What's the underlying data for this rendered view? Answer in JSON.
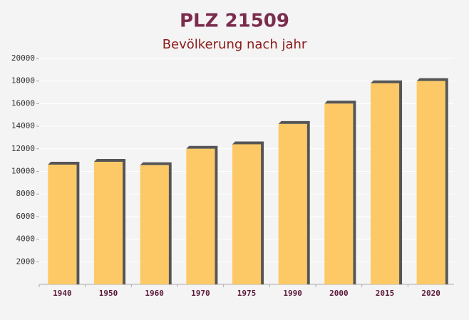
{
  "chart_data": {
    "type": "bar",
    "title": "PLZ 21509",
    "subtitle": "Bevölkerung nach jahr",
    "categories": [
      "1940",
      "1950",
      "1960",
      "1970",
      "1975",
      "1990",
      "2000",
      "2015",
      "2020"
    ],
    "values": [
      10600,
      10850,
      10550,
      12000,
      12400,
      14200,
      16000,
      17800,
      18000
    ],
    "color": "#fdc966",
    "ylim": [
      0,
      20000
    ],
    "yticks": [
      2000,
      4000,
      6000,
      8000,
      10000,
      12000,
      14000,
      16000,
      18000,
      20000
    ],
    "grid": true
  }
}
